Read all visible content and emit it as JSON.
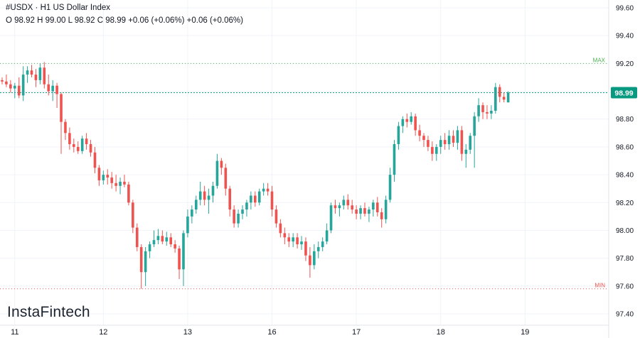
{
  "header": {
    "title": "#USDX · H1 US Dollar Index",
    "ohlc": "O 98.92 H 99.00 L 98.92 C 98.99 +0.06 (+0.06%) +0.06 (+0.06%)"
  },
  "brand": "InstaFintech",
  "colors": {
    "up": "#26a69a",
    "down": "#ef5350",
    "max_line": "#4caf50",
    "min_line": "#ef5350",
    "price_line": "#089981",
    "price_badge": "#089981",
    "grid": "#f0f3fa"
  },
  "chart_data": {
    "type": "candlestick",
    "y_ticks": [
      "99.60",
      "99.40",
      "99.20",
      "99.00",
      "98.80",
      "98.60",
      "98.40",
      "98.20",
      "98.00",
      "97.80",
      "97.60",
      "97.40"
    ],
    "ylim": [
      97.35,
      99.65
    ],
    "x_tick_labels": [
      "11",
      "12",
      "13",
      "16",
      "17",
      "18",
      "19"
    ],
    "x_tick_positions": [
      3,
      24,
      44,
      64,
      84,
      104,
      124
    ],
    "max_level": {
      "label": "MAX",
      "value": 99.2
    },
    "min_level": {
      "label": "MIN",
      "value": 97.58
    },
    "last_price": {
      "label": "98.99",
      "value": 98.99
    },
    "candles": [
      [
        99.08,
        99.1,
        99.05,
        99.07
      ],
      [
        99.07,
        99.12,
        99.03,
        99.05
      ],
      [
        99.05,
        99.08,
        98.99,
        99.02
      ],
      [
        99.02,
        99.06,
        98.95,
        99.04
      ],
      [
        99.04,
        99.1,
        98.95,
        98.97
      ],
      [
        98.97,
        99.18,
        98.93,
        99.12
      ],
      [
        99.12,
        99.18,
        99.06,
        99.15
      ],
      [
        99.15,
        99.19,
        99.1,
        99.12
      ],
      [
        99.12,
        99.16,
        99.03,
        99.08
      ],
      [
        99.08,
        99.2,
        99.05,
        99.17
      ],
      [
        99.17,
        99.21,
        99.02,
        99.05
      ],
      [
        99.05,
        99.12,
        98.97,
        99.0
      ],
      [
        99.0,
        99.08,
        98.93,
        99.04
      ],
      [
        99.04,
        99.06,
        98.88,
        98.98
      ],
      [
        98.98,
        98.99,
        98.55,
        98.78
      ],
      [
        98.78,
        98.8,
        98.65,
        98.7
      ],
      [
        98.7,
        98.74,
        98.58,
        98.62
      ],
      [
        98.62,
        98.66,
        98.56,
        98.6
      ],
      [
        98.6,
        98.64,
        98.55,
        98.57
      ],
      [
        98.57,
        98.68,
        98.55,
        98.66
      ],
      [
        98.66,
        98.7,
        98.58,
        98.62
      ],
      [
        98.62,
        98.65,
        98.53,
        98.56
      ],
      [
        98.56,
        98.6,
        98.41,
        98.45
      ],
      [
        98.45,
        98.47,
        98.32,
        98.36
      ],
      [
        98.36,
        98.43,
        98.33,
        98.4
      ],
      [
        98.4,
        98.44,
        98.33,
        98.38
      ],
      [
        98.38,
        98.42,
        98.3,
        98.34
      ],
      [
        98.34,
        98.4,
        98.28,
        98.32
      ],
      [
        98.32,
        98.38,
        98.26,
        98.35
      ],
      [
        98.35,
        98.4,
        98.31,
        98.33
      ],
      [
        98.33,
        98.35,
        98.18,
        98.2
      ],
      [
        98.2,
        98.22,
        97.98,
        98.02
      ],
      [
        98.02,
        98.05,
        97.85,
        97.88
      ],
      [
        97.88,
        97.9,
        97.58,
        97.7
      ],
      [
        97.7,
        97.88,
        97.6,
        97.85
      ],
      [
        97.85,
        97.92,
        97.8,
        97.9
      ],
      [
        97.9,
        98.0,
        97.88,
        97.93
      ],
      [
        97.93,
        98.01,
        97.9,
        97.96
      ],
      [
        97.96,
        98.0,
        97.9,
        97.92
      ],
      [
        97.92,
        97.99,
        97.89,
        97.95
      ],
      [
        97.95,
        97.98,
        97.88,
        97.9
      ],
      [
        97.9,
        97.93,
        97.84,
        97.87
      ],
      [
        97.87,
        97.89,
        97.65,
        97.72
      ],
      [
        97.72,
        98.0,
        97.6,
        97.98
      ],
      [
        97.98,
        98.15,
        97.95,
        98.1
      ],
      [
        98.1,
        98.18,
        98.05,
        98.15
      ],
      [
        98.15,
        98.25,
        98.12,
        98.22
      ],
      [
        98.22,
        98.35,
        98.18,
        98.28
      ],
      [
        98.28,
        98.32,
        98.18,
        98.22
      ],
      [
        98.22,
        98.3,
        98.12,
        98.25
      ],
      [
        98.25,
        98.35,
        98.2,
        98.32
      ],
      [
        98.32,
        98.55,
        98.3,
        98.5
      ],
      [
        98.5,
        98.52,
        98.4,
        98.45
      ],
      [
        98.45,
        98.48,
        98.25,
        98.3
      ],
      [
        98.3,
        98.32,
        98.1,
        98.15
      ],
      [
        98.15,
        98.18,
        98.02,
        98.05
      ],
      [
        98.05,
        98.15,
        98.02,
        98.12
      ],
      [
        98.12,
        98.18,
        98.08,
        98.15
      ],
      [
        98.15,
        98.22,
        98.1,
        98.2
      ],
      [
        98.2,
        98.28,
        98.15,
        98.25
      ],
      [
        98.25,
        98.28,
        98.17,
        98.2
      ],
      [
        98.2,
        98.3,
        98.18,
        98.28
      ],
      [
        98.28,
        98.34,
        98.25,
        98.3
      ],
      [
        98.3,
        98.34,
        98.25,
        98.28
      ],
      [
        98.28,
        98.32,
        98.1,
        98.15
      ],
      [
        98.15,
        98.18,
        98.02,
        98.05
      ],
      [
        98.05,
        98.08,
        97.95,
        97.98
      ],
      [
        97.98,
        98.02,
        97.9,
        97.95
      ],
      [
        97.95,
        97.98,
        97.88,
        97.92
      ],
      [
        97.92,
        97.98,
        97.88,
        97.95
      ],
      [
        97.95,
        97.98,
        97.87,
        97.9
      ],
      [
        97.9,
        97.96,
        97.86,
        97.92
      ],
      [
        97.92,
        97.95,
        97.78,
        97.82
      ],
      [
        97.82,
        97.88,
        97.66,
        97.75
      ],
      [
        97.75,
        97.9,
        97.72,
        97.85
      ],
      [
        97.85,
        97.92,
        97.8,
        97.88
      ],
      [
        97.88,
        97.95,
        97.85,
        97.92
      ],
      [
        97.92,
        98.05,
        97.9,
        98.0
      ],
      [
        98.0,
        98.2,
        97.98,
        98.18
      ],
      [
        98.18,
        98.22,
        98.12,
        98.16
      ],
      [
        98.16,
        98.2,
        98.1,
        98.18
      ],
      [
        98.18,
        98.25,
        98.15,
        98.22
      ],
      [
        98.22,
        98.26,
        98.15,
        98.18
      ],
      [
        98.18,
        98.22,
        98.12,
        98.15
      ],
      [
        98.15,
        98.18,
        98.08,
        98.12
      ],
      [
        98.12,
        98.18,
        98.08,
        98.16
      ],
      [
        98.16,
        98.2,
        98.1,
        98.12
      ],
      [
        98.12,
        98.17,
        98.06,
        98.15
      ],
      [
        98.15,
        98.22,
        98.1,
        98.2
      ],
      [
        98.2,
        98.24,
        98.1,
        98.13
      ],
      [
        98.13,
        98.16,
        98.02,
        98.08
      ],
      [
        98.08,
        98.25,
        98.05,
        98.22
      ],
      [
        98.22,
        98.45,
        98.2,
        98.4
      ],
      [
        98.4,
        98.65,
        98.35,
        98.62
      ],
      [
        98.62,
        98.78,
        98.58,
        98.75
      ],
      [
        98.75,
        98.82,
        98.7,
        98.8
      ],
      [
        98.8,
        98.84,
        98.74,
        98.78
      ],
      [
        98.78,
        98.85,
        98.76,
        98.82
      ],
      [
        98.82,
        98.84,
        98.68,
        98.72
      ],
      [
        98.72,
        98.76,
        98.64,
        98.68
      ],
      [
        98.68,
        98.7,
        98.6,
        98.65
      ],
      [
        98.65,
        98.68,
        98.57,
        98.6
      ],
      [
        98.6,
        98.64,
        98.5,
        98.55
      ],
      [
        98.55,
        98.62,
        98.5,
        98.6
      ],
      [
        98.6,
        98.68,
        98.55,
        98.65
      ],
      [
        98.65,
        98.7,
        98.58,
        98.62
      ],
      [
        98.62,
        98.72,
        98.58,
        98.68
      ],
      [
        98.68,
        98.72,
        98.6,
        98.63
      ],
      [
        98.63,
        98.75,
        98.58,
        98.72
      ],
      [
        98.72,
        98.75,
        98.5,
        98.55
      ],
      [
        98.55,
        98.62,
        98.45,
        98.58
      ],
      [
        98.58,
        98.7,
        98.55,
        98.68
      ],
      [
        98.68,
        98.85,
        98.45,
        98.82
      ],
      [
        98.82,
        98.95,
        98.78,
        98.9
      ],
      [
        98.9,
        98.92,
        98.8,
        98.85
      ],
      [
        98.85,
        98.9,
        98.8,
        98.84
      ],
      [
        98.84,
        98.9,
        98.8,
        98.86
      ],
      [
        98.86,
        99.06,
        98.84,
        99.03
      ],
      [
        99.03,
        99.05,
        98.92,
        98.96
      ],
      [
        98.96,
        98.99,
        98.92,
        98.94
      ],
      [
        98.92,
        99.0,
        98.92,
        98.99
      ]
    ]
  }
}
